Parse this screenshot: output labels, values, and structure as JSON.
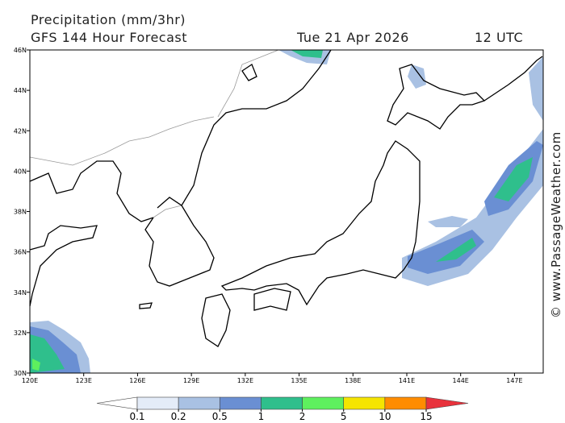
{
  "header": {
    "title": "Precipitation (mm/3hr)",
    "subtitle": "GFS 144 Hour Forecast",
    "date": "Tue 21 Apr 2026",
    "time": "12 UTC",
    "credit": "© www.PassageWeather.com"
  },
  "map": {
    "xlim": [
      120,
      148.6
    ],
    "ylim": [
      30,
      46
    ],
    "xticks": [
      {
        "value": 120,
        "label": "120E"
      },
      {
        "value": 123,
        "label": "123E"
      },
      {
        "value": 126,
        "label": "126E"
      },
      {
        "value": 129,
        "label": "129E"
      },
      {
        "value": 132,
        "label": "132E"
      },
      {
        "value": 135,
        "label": "135E"
      },
      {
        "value": 138,
        "label": "138E"
      },
      {
        "value": 141,
        "label": "141E"
      },
      {
        "value": 144,
        "label": "144E"
      },
      {
        "value": 147,
        "label": "147E"
      }
    ],
    "yticks": [
      {
        "value": 30,
        "label": "30N"
      },
      {
        "value": 32,
        "label": "32N"
      },
      {
        "value": 34,
        "label": "34N"
      },
      {
        "value": 36,
        "label": "36N"
      },
      {
        "value": 38,
        "label": "38N"
      },
      {
        "value": 40,
        "label": "40N"
      },
      {
        "value": 42,
        "label": "42N"
      },
      {
        "value": 44,
        "label": "44N"
      },
      {
        "value": 46,
        "label": "46N"
      }
    ]
  },
  "legend": {
    "levels": [
      0.1,
      0.2,
      0.5,
      1,
      2,
      5,
      10,
      15
    ],
    "colors": [
      "#ffffff",
      "#e4ecf8",
      "#a9c1e3",
      "#6a8fd3",
      "#2fbf8c",
      "#5ef05e",
      "#f5e500",
      "#ff8c00",
      "#e8323c"
    ]
  }
}
